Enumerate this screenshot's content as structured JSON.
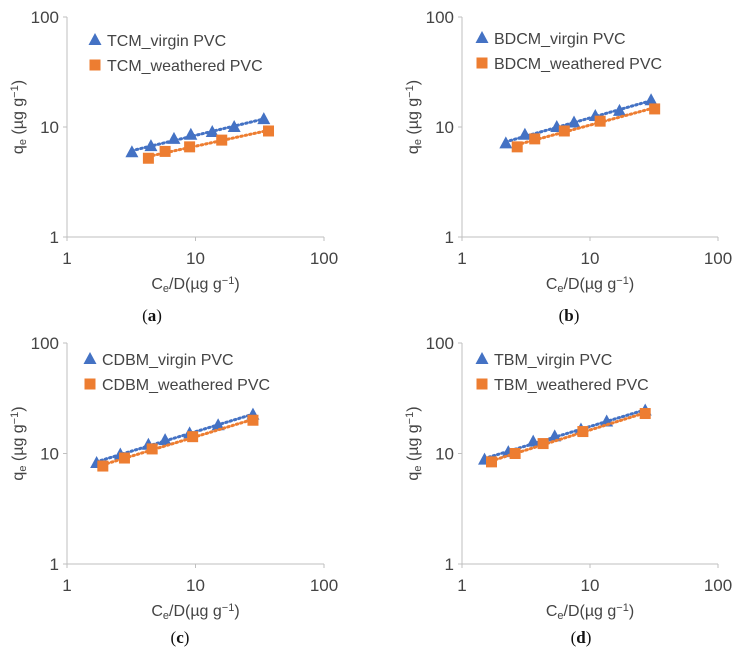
{
  "colors": {
    "virgin": "#4472C4",
    "weathered": "#ED7D31",
    "axis": "#BFBFBF",
    "text": "#444444"
  },
  "chart_data": [
    {
      "type": "scatter",
      "panel_label": "a",
      "x_scale": "log",
      "y_scale": "log",
      "xlim": [
        1,
        100
      ],
      "ylim": [
        1,
        100
      ],
      "x_ticks": [
        "1",
        "10",
        "100"
      ],
      "y_ticks": [
        "1",
        "10",
        "100"
      ],
      "xlabel": {
        "main": "C",
        "sub": "e",
        "rest": "/D(µg g",
        "sup": "−1",
        "close": ")"
      },
      "ylabel": {
        "main": "q",
        "sub": "e",
        "rest": " (µg g",
        "sup": "−1",
        "close": ")"
      },
      "legend_position": "top-left",
      "series": [
        {
          "name": "TCM_virgin PVC",
          "marker": "triangle",
          "color": "#4472C4",
          "trendline": "dotted",
          "points": [
            [
              3.2,
              5.9
            ],
            [
              4.5,
              6.7
            ],
            [
              6.8,
              7.8
            ],
            [
              9.2,
              8.5
            ],
            [
              13.5,
              9.0
            ],
            [
              20,
              10.0
            ],
            [
              34,
              11.8
            ]
          ]
        },
        {
          "name": "TCM_weathered PVC",
          "marker": "square",
          "color": "#ED7D31",
          "trendline": "dotted",
          "points": [
            [
              4.3,
              5.2
            ],
            [
              5.8,
              6.0
            ],
            [
              9.0,
              6.6
            ],
            [
              16,
              7.6
            ],
            [
              37,
              9.2
            ]
          ]
        }
      ]
    },
    {
      "type": "scatter",
      "panel_label": "b",
      "x_scale": "log",
      "y_scale": "log",
      "xlim": [
        1,
        100
      ],
      "ylim": [
        1,
        100
      ],
      "x_ticks": [
        "1",
        "10",
        "100"
      ],
      "y_ticks": [
        "1",
        "10",
        "100"
      ],
      "xlabel": {
        "main": "C",
        "sub": "e",
        "rest": "/D(µg g",
        "sup": "−1",
        "close": ")"
      },
      "ylabel": {
        "main": "q",
        "sub": "e",
        "rest": " (µg g",
        "sup": "−1",
        "close": ")"
      },
      "legend_position": "top-left",
      "series": [
        {
          "name": "BDCM_virgin PVC",
          "marker": "triangle",
          "color": "#4472C4",
          "trendline": "dotted",
          "points": [
            [
              2.2,
              7.1
            ],
            [
              3.1,
              8.5
            ],
            [
              5.5,
              10.0
            ],
            [
              7.5,
              11.0
            ],
            [
              11,
              12.6
            ],
            [
              17,
              14.0
            ],
            [
              30,
              17.5
            ]
          ]
        },
        {
          "name": "BDCM_weathered PVC",
          "marker": "square",
          "color": "#ED7D31",
          "trendline": "dotted",
          "points": [
            [
              2.7,
              6.6
            ],
            [
              3.7,
              7.8
            ],
            [
              6.3,
              9.2
            ],
            [
              12,
              11.3
            ],
            [
              32,
              14.6
            ]
          ]
        }
      ]
    },
    {
      "type": "scatter",
      "panel_label": "c",
      "x_scale": "log",
      "y_scale": "log",
      "xlim": [
        1,
        100
      ],
      "ylim": [
        1,
        100
      ],
      "x_ticks": [
        "1",
        "10",
        "100"
      ],
      "y_ticks": [
        "1",
        "10",
        "100"
      ],
      "xlabel": {
        "main": "C",
        "sub": "e",
        "rest": "/D(µg g",
        "sup": "−1",
        "close": ")"
      },
      "ylabel": {
        "main": "q",
        "sub": "e",
        "rest": " (µg g",
        "sup": "−1",
        "close": ")"
      },
      "legend_position": "top-left",
      "series": [
        {
          "name": "CDBM_virgin PVC",
          "marker": "triangle",
          "color": "#4472C4",
          "trendline": "dotted",
          "points": [
            [
              1.7,
              8.2
            ],
            [
              2.6,
              9.8
            ],
            [
              4.3,
              12.0
            ],
            [
              5.8,
              13.2
            ],
            [
              9.0,
              15.2
            ],
            [
              15,
              18.0
            ],
            [
              28,
              22.5
            ]
          ]
        },
        {
          "name": "CDBM_weathered PVC",
          "marker": "square",
          "color": "#ED7D31",
          "trendline": "dotted",
          "points": [
            [
              1.9,
              7.7
            ],
            [
              2.8,
              9.1
            ],
            [
              4.6,
              11.0
            ],
            [
              9.5,
              14.2
            ],
            [
              28,
              20.0
            ]
          ]
        }
      ]
    },
    {
      "type": "scatter",
      "panel_label": "d",
      "x_scale": "log",
      "y_scale": "log",
      "xlim": [
        1,
        100
      ],
      "ylim": [
        1,
        100
      ],
      "x_ticks": [
        "1",
        "10",
        "100"
      ],
      "y_ticks": [
        "1",
        "10",
        "100"
      ],
      "xlabel": {
        "main": "C",
        "sub": "e",
        "rest": "/D(µg g",
        "sup": "−1",
        "close": ")"
      },
      "ylabel": {
        "main": "q",
        "sub": "e",
        "rest": " (µg g",
        "sup": "−1",
        "close": ")"
      },
      "legend_position": "top-left",
      "series": [
        {
          "name": "TBM_virgin PVC",
          "marker": "triangle",
          "color": "#4472C4",
          "trendline": "dotted",
          "points": [
            [
              1.5,
              8.8
            ],
            [
              2.3,
              10.3
            ],
            [
              3.6,
              12.8
            ],
            [
              5.3,
              14.3
            ],
            [
              8.5,
              16.5
            ],
            [
              13.5,
              19.5
            ],
            [
              27,
              24.5
            ]
          ]
        },
        {
          "name": "TBM_weathered PVC",
          "marker": "square",
          "color": "#ED7D31",
          "trendline": "dotted",
          "points": [
            [
              1.7,
              8.4
            ],
            [
              2.6,
              10.0
            ],
            [
              4.3,
              12.3
            ],
            [
              8.8,
              15.8
            ],
            [
              27,
              23.0
            ]
          ]
        }
      ]
    }
  ]
}
